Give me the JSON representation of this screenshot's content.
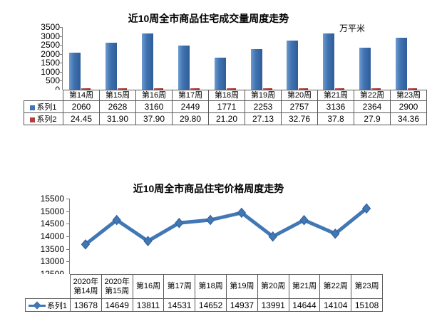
{
  "chart_data": [
    {
      "type": "bar",
      "title": "近10周全市商品住宅成交量周度走势",
      "unit_label": "万平米",
      "categories": [
        "第14周",
        "第15周",
        "第16周",
        "第17周",
        "第18周",
        "第19周",
        "第20周",
        "第21周",
        "第22周",
        "第23周"
      ],
      "series": [
        {
          "name": "系列1",
          "values": [
            "2060",
            "2628",
            "3160",
            "2449",
            "1771",
            "2253",
            "2757",
            "3136",
            "2364",
            "2900"
          ],
          "color": "#4174b2",
          "marker": "square"
        },
        {
          "name": "系列2",
          "values": [
            "24.45",
            "31.90",
            "37.90",
            "29.80",
            "21.20",
            "27.13",
            "32.76",
            "37.8",
            "27.9",
            "34.36"
          ],
          "color": "#b4403d",
          "marker": "square"
        }
      ],
      "ylim": [
        0,
        3500
      ],
      "ytick_step": 500,
      "grid": false,
      "legend_position": "table-left"
    },
    {
      "type": "line",
      "title": "近10周全市商品住宅价格周度走势",
      "categories": [
        "2020年\n第14周",
        "2020年\n第15周",
        "第16周",
        "第17周",
        "第18周",
        "第19周",
        "第20周",
        "第21周",
        "第22周",
        "第23周"
      ],
      "series": [
        {
          "name": "系列1",
          "values": [
            "13678",
            "14649",
            "13811",
            "14531",
            "14652",
            "14937",
            "13991",
            "14644",
            "14104",
            "15108"
          ],
          "color": "#4177b5",
          "marker": "diamond"
        }
      ],
      "ylim": [
        12500,
        15500
      ],
      "ytick_step": 500,
      "grid": false,
      "legend_position": "table-left"
    }
  ],
  "colors": {
    "bar_blue": "#4174b2",
    "bar_red": "#b4403d",
    "line_blue": "#4177b5",
    "axis_gray": "#7f7f7f",
    "table_border": "#595959",
    "text": "#000000",
    "background": "#ffffff"
  }
}
